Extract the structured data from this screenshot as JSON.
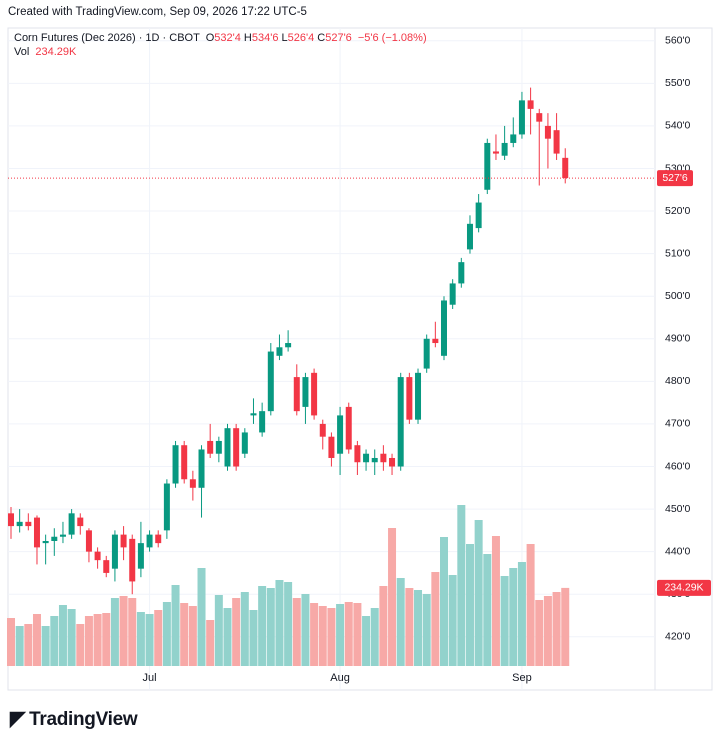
{
  "chart_data": {
    "type": "candlestick",
    "caption": "Created with TradingView.com, Sep 09, 2026 17:22 UTC-5",
    "title": "Corn Futures (Dec 2026) · 1D · CBOT",
    "legend": {
      "open": "O",
      "high": "H",
      "low": "L",
      "close": "C",
      "volume": "Vol"
    },
    "legend_values": {
      "open": "532'4",
      "high": "534'6",
      "low": "526'4",
      "close": "527'6",
      "change": "−5'6 (−1.08%)",
      "volume": "234.29K"
    },
    "last_price_label": "527'6",
    "last_volume_label": "234.29K",
    "logo": "TradingView",
    "categories": [
      null,
      null,
      null,
      null,
      null,
      null,
      null,
      null,
      null,
      null,
      null,
      null,
      null,
      null,
      null,
      null,
      "Jul",
      null,
      null,
      null,
      null,
      null,
      null,
      null,
      null,
      null,
      null,
      null,
      null,
      null,
      null,
      null,
      null,
      null,
      null,
      null,
      null,
      null,
      "Aug",
      null,
      null,
      null,
      null,
      null,
      null,
      null,
      null,
      null,
      null,
      null,
      null,
      null,
      null,
      null,
      null,
      null,
      null,
      null,
      null,
      "Sep",
      null,
      null,
      null,
      null,
      null
    ],
    "series": {
      "open": [
        449,
        446,
        447,
        448,
        442,
        442.5,
        443.5,
        444,
        448,
        445,
        440,
        438,
        436,
        444,
        443,
        436,
        441,
        444,
        445,
        456,
        465,
        457,
        455,
        466,
        463,
        460,
        469,
        463,
        472,
        468,
        473,
        486,
        488,
        481,
        474,
        482,
        470,
        467,
        463,
        474,
        465,
        461,
        461,
        463,
        462,
        460,
        481,
        471,
        483,
        490,
        486,
        498,
        503,
        511,
        516,
        525,
        534,
        533,
        536,
        538,
        546,
        543,
        540,
        539,
        532.5
      ],
      "high": [
        450.5,
        450,
        449,
        448.5,
        444,
        445.5,
        447,
        450,
        449,
        445.5,
        441,
        439,
        445,
        446,
        444,
        447,
        445,
        445,
        457,
        466,
        466,
        459,
        465,
        470,
        467,
        470,
        470,
        469,
        476,
        475,
        489,
        491,
        492,
        484,
        482,
        483,
        471,
        468,
        474,
        475,
        466,
        464,
        464,
        465,
        463,
        482,
        482,
        483,
        491,
        494,
        500,
        504,
        509,
        519,
        524,
        537,
        538,
        540,
        542,
        548,
        549,
        544,
        543,
        543,
        534.75
      ],
      "low": [
        443,
        444.5,
        445,
        437,
        437,
        439,
        442,
        443,
        444,
        437.5,
        436,
        434,
        433,
        438,
        430,
        434,
        440,
        441,
        443,
        455,
        456,
        452,
        448,
        462,
        461,
        459,
        459,
        462,
        470,
        467,
        472,
        485,
        487,
        472,
        470,
        471,
        464,
        460,
        458,
        463,
        458,
        459,
        458,
        459,
        458,
        459,
        470,
        470,
        482,
        488,
        485,
        497,
        502,
        510,
        515,
        524,
        532,
        532,
        535,
        537,
        538,
        526,
        530,
        532,
        526.5
      ],
      "close": [
        446,
        447,
        446,
        441,
        442.5,
        443.5,
        444,
        449,
        446,
        440,
        438,
        435,
        444,
        441,
        433,
        442,
        444,
        442,
        456,
        465,
        457,
        455,
        464,
        463,
        466,
        469,
        460,
        468,
        472.5,
        473,
        487,
        488,
        489,
        473,
        481,
        472,
        467,
        462,
        472,
        464,
        461,
        463,
        462,
        461,
        460,
        481,
        471,
        482,
        490,
        489,
        499,
        503,
        508,
        517,
        522,
        536,
        533.5,
        536,
        538,
        546,
        544,
        541,
        537,
        533.5,
        527.75
      ],
      "volume": [
        144000,
        120000,
        126000,
        156000,
        120000,
        150000,
        183000,
        171000,
        126000,
        150000,
        156000,
        159000,
        204000,
        210000,
        204000,
        162000,
        156000,
        168000,
        192000,
        243000,
        189000,
        180000,
        294000,
        138000,
        213000,
        174000,
        204000,
        222000,
        168000,
        240000,
        234000,
        258000,
        252000,
        204000,
        216000,
        189000,
        180000,
        174000,
        186000,
        192000,
        189000,
        150000,
        174000,
        240000,
        414000,
        264000,
        234000,
        228000,
        216000,
        282000,
        387000,
        273000,
        483000,
        366000,
        438000,
        336000,
        390000,
        270000,
        294000,
        312000,
        366000,
        198000,
        210000,
        222000,
        234290
      ]
    },
    "up_color": "#089981",
    "down_color": "#f23645",
    "up_volume_color": "#92d2cc",
    "down_volume_color": "#f7a9a7",
    "ylim": [
      407.5,
      563
    ],
    "yticks": [
      {
        "value": 420,
        "label": "420'0"
      },
      {
        "value": 430,
        "label": "430'0"
      },
      {
        "value": 440,
        "label": "440'0"
      },
      {
        "value": 450,
        "label": "450'0"
      },
      {
        "value": 460,
        "label": "460'0"
      },
      {
        "value": 470,
        "label": "470'0"
      },
      {
        "value": 480,
        "label": "480'0"
      },
      {
        "value": 490,
        "label": "490'0"
      },
      {
        "value": 500,
        "label": "500'0"
      },
      {
        "value": 510,
        "label": "510'0"
      },
      {
        "value": 520,
        "label": "520'0"
      },
      {
        "value": 530,
        "label": "530'0"
      },
      {
        "value": 540,
        "label": "540'0"
      },
      {
        "value": 550,
        "label": "550'0"
      },
      {
        "value": 560,
        "label": "560'0"
      }
    ],
    "grid": true
  }
}
